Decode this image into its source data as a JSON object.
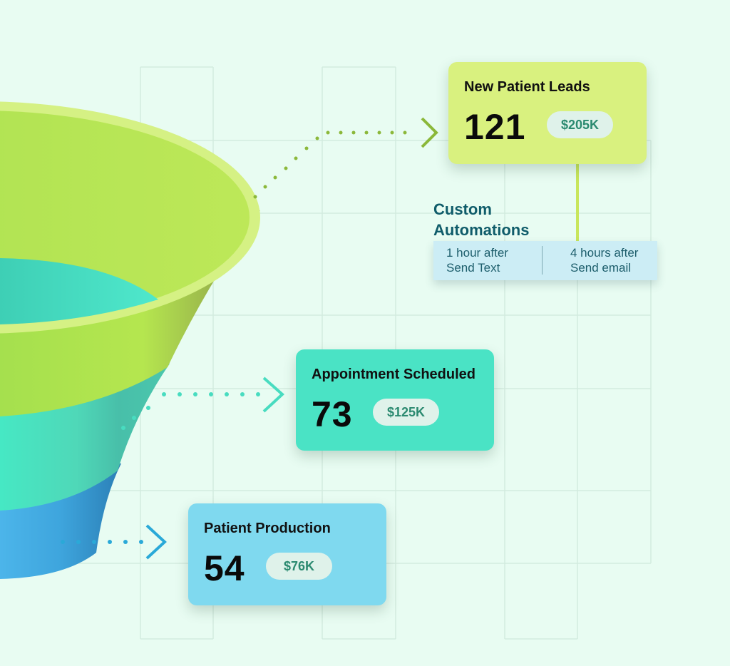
{
  "colors": {
    "background": "#e8fcf2",
    "leads": "#d9f17f",
    "appointment": "#4ae3c5",
    "production": "#7fd9ef",
    "pill_bg": "#dff2ea",
    "pill_text": "#2b8a70",
    "automation_bg": "#ccedf5",
    "automation_text": "#0f5c6a"
  },
  "cards": [
    {
      "title": "New Patient Leads",
      "count": "121",
      "value": "$205K"
    },
    {
      "title": "Appointment Scheduled",
      "count": "73",
      "value": "$125K"
    },
    {
      "title": "Patient Production",
      "count": "54",
      "value": "$76K"
    }
  ],
  "automations": {
    "title_line1": "Custom",
    "title_line2": "Automations",
    "steps": [
      {
        "delay": "1 hour after",
        "action": "Send Text"
      },
      {
        "delay": "4 hours after",
        "action": "Send email"
      }
    ]
  }
}
